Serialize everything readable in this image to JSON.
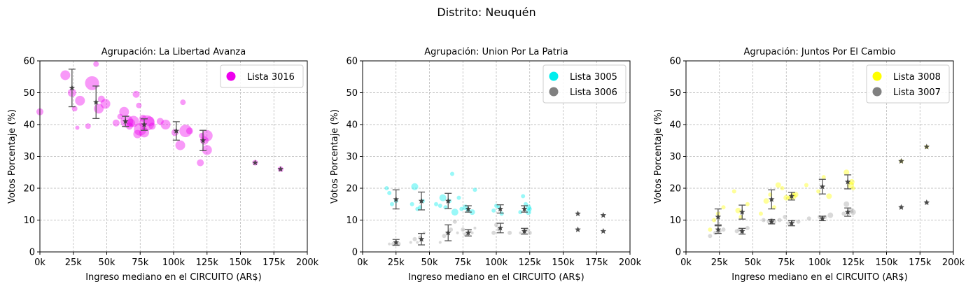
{
  "suptitle": "Distrito: Neuquén",
  "chart_data": [
    {
      "type": "scatter",
      "title": "Agrupación: La Libertad Avanza",
      "xlabel": "Ingreso mediano en el CIRCUITO (AR$)",
      "ylabel": "Votos Porcentaje (%)",
      "xlim": [
        0,
        200000
      ],
      "ylim": [
        0,
        60
      ],
      "xticks": [
        "0k",
        "25k",
        "50k",
        "75k",
        "100k",
        "125k",
        "150k",
        "175k",
        "200k"
      ],
      "yticks": [
        "0",
        "10",
        "20",
        "30",
        "40",
        "50",
        "60"
      ],
      "grid": true,
      "legend": "top-right",
      "series": [
        {
          "name": "Lista 3016",
          "color": "#ee00ee",
          "points": [
            [
              0,
              44,
              5
            ],
            [
              19000,
              55.5,
              7
            ],
            [
              24000,
              50,
              6
            ],
            [
              26000,
              45,
              4
            ],
            [
              28000,
              39,
              3
            ],
            [
              30000,
              47.5,
              7
            ],
            [
              36000,
              39.5,
              4
            ],
            [
              39000,
              53,
              10
            ],
            [
              42000,
              59,
              4
            ],
            [
              44000,
              45,
              7
            ],
            [
              46000,
              48,
              5
            ],
            [
              49000,
              46.5,
              7
            ],
            [
              57000,
              40.5,
              5
            ],
            [
              60000,
              42.5,
              4
            ],
            [
              63000,
              44,
              7
            ],
            [
              65000,
              41,
              9
            ],
            [
              67000,
              39.5,
              5
            ],
            [
              68000,
              40.5,
              6
            ],
            [
              70000,
              41,
              8
            ],
            [
              72000,
              49.5,
              5
            ],
            [
              73000,
              37,
              6
            ],
            [
              74000,
              46,
              4
            ],
            [
              75000,
              38.5,
              9
            ],
            [
              77000,
              42,
              5
            ],
            [
              78000,
              37.5,
              7
            ],
            [
              80000,
              40.5,
              11
            ],
            [
              82000,
              41,
              7
            ],
            [
              84000,
              39.5,
              5
            ],
            [
              90000,
              41,
              5
            ],
            [
              94000,
              40,
              7
            ],
            [
              101000,
              37.5,
              5
            ],
            [
              105000,
              33.5,
              7
            ],
            [
              107000,
              47,
              4
            ],
            [
              109000,
              38,
              9
            ],
            [
              112000,
              38,
              5
            ],
            [
              120000,
              28,
              5
            ],
            [
              121000,
              36.5,
              4
            ],
            [
              123000,
              35,
              6
            ],
            [
              125000,
              36.5,
              8
            ],
            [
              125000,
              32,
              7
            ],
            [
              161000,
              28,
              4
            ],
            [
              180000,
              26,
              4
            ]
          ],
          "means": [
            [
              24000,
              51.5,
              5.9
            ],
            [
              42000,
              47,
              5.1
            ],
            [
              64000,
              41,
              1.6
            ],
            [
              78000,
              40,
              1.8
            ],
            [
              102000,
              38,
              2.9
            ],
            [
              122000,
              35,
              3.2
            ],
            [
              161000,
              28,
              0
            ],
            [
              180000,
              26,
              0
            ]
          ]
        }
      ]
    },
    {
      "type": "scatter",
      "title": "Agrupación: Union Por La Patria",
      "xlabel": "Ingreso mediano en el CIRCUITO (AR$)",
      "ylabel": "Votos Porcentaje (%)",
      "xlim": [
        0,
        200000
      ],
      "ylim": [
        0,
        60
      ],
      "xticks": [
        "0k",
        "25k",
        "50k",
        "75k",
        "100k",
        "125k",
        "150k",
        "175k",
        "200k"
      ],
      "yticks": [
        "0",
        "10",
        "20",
        "30",
        "40",
        "50",
        "60"
      ],
      "grid": true,
      "legend": "top-right",
      "series": [
        {
          "name": "Lista 3005",
          "color": "#00eeee",
          "points": [
            [
              18000,
              20,
              3
            ],
            [
              20000,
              18.5,
              3
            ],
            [
              22000,
              15,
              3
            ],
            [
              25000,
              16,
              3
            ],
            [
              37000,
              15,
              3
            ],
            [
              39000,
              20.5,
              5
            ],
            [
              41000,
              13.5,
              3
            ],
            [
              43000,
              14,
              3
            ],
            [
              45000,
              16,
              3
            ],
            [
              55000,
              15,
              3
            ],
            [
              58000,
              14.5,
              3
            ],
            [
              60000,
              17,
              5
            ],
            [
              62000,
              14,
              3
            ],
            [
              65000,
              16,
              3
            ],
            [
              67000,
              24.5,
              3
            ],
            [
              69000,
              12.5,
              5
            ],
            [
              72000,
              17,
              3
            ],
            [
              74000,
              13.5,
              3
            ],
            [
              77000,
              14,
              4
            ],
            [
              79000,
              13,
              3
            ],
            [
              82000,
              12.5,
              4
            ],
            [
              84000,
              19.5,
              3
            ],
            [
              98000,
              13,
              3
            ],
            [
              100000,
              14.5,
              3
            ],
            [
              102000,
              14,
              3
            ],
            [
              104000,
              12,
              3
            ],
            [
              118000,
              12.5,
              3
            ],
            [
              120000,
              17.5,
              3
            ],
            [
              122000,
              15,
              3
            ],
            [
              124000,
              12.5,
              4
            ],
            [
              124000,
              14,
              4
            ],
            [
              125000,
              13.5,
              3
            ]
          ],
          "means": [
            [
              25000,
              16.5,
              3.0
            ],
            [
              44000,
              16,
              2.8
            ],
            [
              64000,
              16,
              2.4
            ],
            [
              79000,
              13.5,
              1.0
            ],
            [
              103000,
              13.5,
              1.3
            ],
            [
              121000,
              13.5,
              1.0
            ],
            [
              161000,
              12,
              0
            ],
            [
              180000,
              11.5,
              0
            ]
          ]
        },
        {
          "name": "Lista 3006",
          "color": "#808080",
          "points": [
            [
              20000,
              2.5,
              2
            ],
            [
              23000,
              2.5,
              3
            ],
            [
              25000,
              3,
              2
            ],
            [
              27000,
              2.5,
              3
            ],
            [
              36000,
              3,
              2
            ],
            [
              39000,
              4,
              3
            ],
            [
              41000,
              3,
              2
            ],
            [
              43000,
              4.5,
              3
            ],
            [
              46000,
              6,
              2
            ],
            [
              58000,
              3,
              2
            ],
            [
              61000,
              5,
              3
            ],
            [
              63000,
              6,
              2
            ],
            [
              66000,
              7,
              3
            ],
            [
              69000,
              9.5,
              3
            ],
            [
              71000,
              6,
              2
            ],
            [
              75000,
              7,
              3
            ],
            [
              77000,
              5.5,
              3
            ],
            [
              80000,
              6.5,
              3
            ],
            [
              82000,
              6,
              2
            ],
            [
              84000,
              7.5,
              2
            ],
            [
              98000,
              6,
              3
            ],
            [
              100000,
              8.5,
              3
            ],
            [
              102000,
              7,
              3
            ],
            [
              110000,
              6,
              3
            ],
            [
              118000,
              6,
              2
            ],
            [
              121000,
              6.5,
              3
            ],
            [
              123000,
              7,
              3
            ],
            [
              125000,
              6,
              3
            ]
          ],
          "means": [
            [
              25000,
              3,
              0.9
            ],
            [
              44000,
              4,
              1.8
            ],
            [
              64000,
              6,
              2.5
            ],
            [
              79000,
              6,
              1.0
            ],
            [
              103000,
              7.5,
              1.5
            ],
            [
              121000,
              6.5,
              0.9
            ],
            [
              161000,
              7,
              0
            ],
            [
              180000,
              6.5,
              0
            ]
          ]
        }
      ]
    },
    {
      "type": "scatter",
      "title": "Agrupación: Juntos Por El Cambio",
      "xlabel": "Ingreso mediano en el CIRCUITO (AR$)",
      "ylabel": "Votos Porcentaje (%)",
      "xlim": [
        0,
        200000
      ],
      "ylim": [
        0,
        60
      ],
      "xticks": [
        "0k",
        "25k",
        "50k",
        "75k",
        "100k",
        "125k",
        "150k",
        "175k",
        "200k"
      ],
      "yticks": [
        "0",
        "10",
        "20",
        "30",
        "40",
        "50",
        "60"
      ],
      "grid": true,
      "legend": "top-right",
      "series": [
        {
          "name": "Lista 3008",
          "color": "#ffff00",
          "points": [
            [
              18000,
              7,
              3
            ],
            [
              21000,
              10,
              3
            ],
            [
              24000,
              12,
              3
            ],
            [
              28000,
              14,
              3
            ],
            [
              36000,
              19,
              3
            ],
            [
              39000,
              13,
              4
            ],
            [
              41000,
              11,
              3
            ],
            [
              46000,
              15,
              3
            ],
            [
              56000,
              12,
              3
            ],
            [
              60000,
              16,
              4
            ],
            [
              63000,
              18,
              3
            ],
            [
              66000,
              14,
              3
            ],
            [
              69000,
              21,
              4
            ],
            [
              72000,
              20,
              3
            ],
            [
              75000,
              17,
              4
            ],
            [
              77000,
              17,
              3
            ],
            [
              80000,
              17.5,
              5
            ],
            [
              82000,
              18,
              4
            ],
            [
              90000,
              21,
              3
            ],
            [
              99000,
              19,
              3
            ],
            [
              103000,
              23.5,
              3
            ],
            [
              107000,
              17.5,
              4
            ],
            [
              120000,
              25,
              4
            ],
            [
              123000,
              21,
              5
            ],
            [
              124000,
              22,
              4
            ],
            [
              125000,
              20,
              3
            ],
            [
              161000,
              28.5,
              3
            ],
            [
              180000,
              33,
              3
            ]
          ],
          "means": [
            [
              24000,
              11,
              2.5
            ],
            [
              42000,
              12.5,
              2.2
            ],
            [
              64000,
              16.5,
              3.0
            ],
            [
              79000,
              17.5,
              1.2
            ],
            [
              102000,
              20.5,
              2.3
            ],
            [
              121000,
              22,
              2.2
            ],
            [
              161000,
              28.5,
              0
            ],
            [
              180000,
              33,
              0
            ]
          ]
        },
        {
          "name": "Lista 3007",
          "color": "#808080",
          "points": [
            [
              18000,
              5,
              3
            ],
            [
              22000,
              6,
              3
            ],
            [
              25000,
              6.5,
              3
            ],
            [
              28000,
              7,
              3
            ],
            [
              38000,
              6.5,
              3
            ],
            [
              40000,
              7,
              3
            ],
            [
              42000,
              6.5,
              3
            ],
            [
              46000,
              7.5,
              3
            ],
            [
              58000,
              10,
              3
            ],
            [
              62000,
              9.5,
              3
            ],
            [
              64000,
              10,
              3
            ],
            [
              66000,
              9.5,
              3
            ],
            [
              70000,
              10,
              3
            ],
            [
              74000,
              11,
              3
            ],
            [
              77000,
              9,
              3
            ],
            [
              80000,
              9.5,
              3
            ],
            [
              84000,
              9.5,
              3
            ],
            [
              92000,
              10.5,
              3
            ],
            [
              100000,
              11,
              3
            ],
            [
              104000,
              11,
              3
            ],
            [
              108000,
              11.5,
              4
            ],
            [
              118000,
              12,
              3
            ],
            [
              120000,
              15,
              4
            ],
            [
              123000,
              13,
              4
            ],
            [
              125000,
              12.5,
              4
            ],
            [
              161000,
              14,
              3
            ],
            [
              180000,
              15.5,
              3
            ]
          ],
          "means": [
            [
              24000,
              7,
              1.2
            ],
            [
              42000,
              6.5,
              0.9
            ],
            [
              64000,
              9.5,
              0.7
            ],
            [
              79000,
              9,
              0.8
            ],
            [
              102000,
              10.5,
              0.7
            ],
            [
              121000,
              12.5,
              1.3
            ],
            [
              161000,
              14,
              0
            ],
            [
              180000,
              15.5,
              0
            ]
          ]
        }
      ]
    }
  ]
}
